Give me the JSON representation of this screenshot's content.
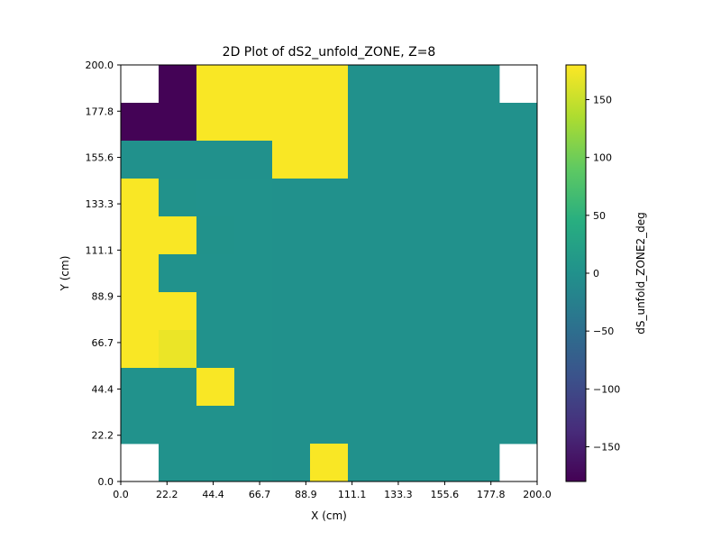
{
  "chart_data": {
    "type": "heatmap",
    "title": "2D Plot of dS2_unfold_ZONE, Z=8",
    "xlabel": "X (cm)",
    "ylabel": "Y (cm)",
    "colorbar_label": "dS_unfold_ZONE2_deg",
    "colormap": "viridis",
    "xlim": [
      0,
      200
    ],
    "ylim": [
      0,
      200
    ],
    "clim": [
      -180,
      180
    ],
    "x_ticks": [
      "0.0",
      "22.2",
      "44.4",
      "66.7",
      "88.9",
      "111.1",
      "133.3",
      "155.6",
      "177.8",
      "200.0"
    ],
    "y_ticks": [
      "0.0",
      "22.2",
      "44.4",
      "66.7",
      "88.9",
      "111.1",
      "133.3",
      "155.6",
      "177.8",
      "200.0"
    ],
    "colorbar_ticks": [
      "150",
      "100",
      "50",
      "0",
      "−50",
      "−100",
      "−150"
    ],
    "colorbar_tick_values": [
      150,
      100,
      50,
      0,
      -50,
      -100,
      -150
    ],
    "grid_cols": 11,
    "grid_rows": 11,
    "cell_values_top_to_bottom": [
      [
        null,
        -178,
        178,
        178,
        178,
        178,
        0,
        0,
        0,
        0,
        null
      ],
      [
        -178,
        -178,
        178,
        178,
        178,
        178,
        0,
        0,
        0,
        0,
        0
      ],
      [
        0,
        0,
        0,
        0,
        178,
        178,
        0,
        0,
        0,
        0,
        0
      ],
      [
        178,
        2,
        1,
        1,
        0,
        0,
        0,
        0,
        0,
        0,
        0
      ],
      [
        178,
        178,
        2,
        1,
        0,
        0,
        0,
        0,
        0,
        0,
        0
      ],
      [
        178,
        1,
        1,
        1,
        0,
        0,
        0,
        0,
        0,
        0,
        0
      ],
      [
        178,
        178,
        1,
        1,
        0,
        0,
        0,
        0,
        0,
        0,
        0
      ],
      [
        178,
        170,
        1,
        1,
        0,
        0,
        0,
        0,
        0,
        0,
        0
      ],
      [
        1,
        1,
        178,
        1,
        0,
        0,
        0,
        0,
        0,
        0,
        0
      ],
      [
        1,
        1,
        1,
        1,
        0,
        0,
        0,
        0,
        0,
        0,
        0
      ],
      [
        null,
        1,
        1,
        1,
        0,
        178,
        0,
        0,
        0,
        0,
        null
      ]
    ]
  }
}
